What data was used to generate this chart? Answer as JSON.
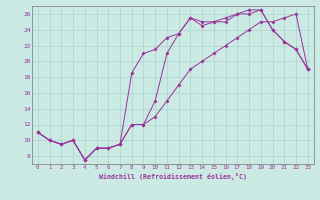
{
  "xlabel": "Windchill (Refroidissement éolien,°C)",
  "bg_color": "#cceae4",
  "grid_color": "#aad4cc",
  "line_color": "#993399",
  "xlim": [
    -0.5,
    23.5
  ],
  "ylim": [
    7,
    27
  ],
  "xticks": [
    0,
    1,
    2,
    3,
    4,
    5,
    6,
    7,
    8,
    9,
    10,
    11,
    12,
    13,
    14,
    15,
    16,
    17,
    18,
    19,
    20,
    21,
    22,
    23
  ],
  "yticks": [
    8,
    10,
    12,
    14,
    16,
    18,
    20,
    22,
    24,
    26
  ],
  "curve1_x": [
    0,
    1,
    2,
    3,
    4,
    5,
    6,
    7,
    8,
    9,
    10,
    11,
    12,
    13,
    14,
    15,
    16,
    17,
    18,
    19,
    20,
    21,
    22,
    23
  ],
  "curve1_y": [
    11,
    10,
    9.5,
    10,
    7.5,
    9,
    9,
    9.5,
    12,
    12,
    15,
    21,
    23.5,
    25.5,
    24.5,
    25,
    25,
    26,
    26,
    26.5,
    24,
    22.5,
    21.5,
    19
  ],
  "curve2_x": [
    0,
    1,
    2,
    3,
    4,
    5,
    6,
    7,
    8,
    9,
    10,
    11,
    12,
    13,
    14,
    15,
    16,
    17,
    18,
    19,
    20,
    21,
    22,
    23
  ],
  "curve2_y": [
    11,
    10,
    9.5,
    10,
    7.5,
    9,
    9,
    9.5,
    18.5,
    21,
    21.5,
    23,
    23.5,
    25.5,
    25,
    25,
    25.5,
    26,
    26.5,
    26.5,
    24,
    22.5,
    21.5,
    19
  ],
  "curve3_x": [
    0,
    1,
    2,
    3,
    4,
    5,
    6,
    7,
    8,
    9,
    10,
    11,
    12,
    13,
    14,
    15,
    16,
    17,
    18,
    19,
    20,
    21,
    22,
    23
  ],
  "curve3_y": [
    11,
    10,
    9.5,
    10,
    7.5,
    9,
    9,
    9.5,
    12,
    12,
    13,
    15,
    17,
    19,
    20,
    21,
    22,
    23,
    24,
    25,
    25,
    25.5,
    26,
    19
  ]
}
